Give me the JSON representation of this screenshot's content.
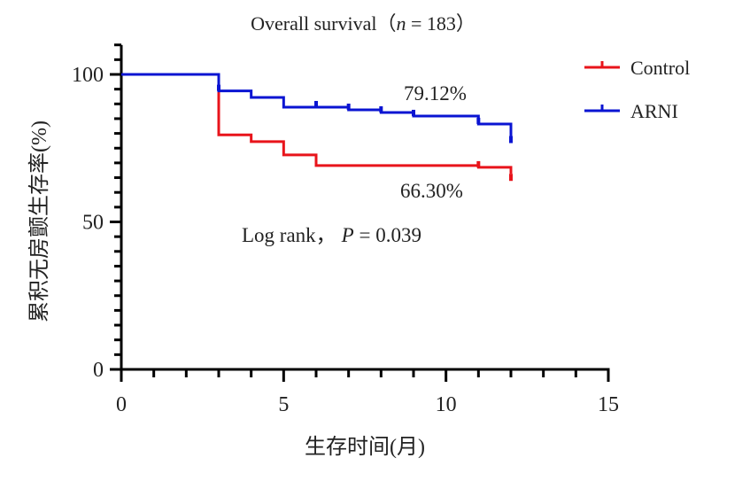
{
  "chart_data": {
    "type": "line",
    "subtype": "kaplan-meier-step",
    "title": "Overall survival（n = 183）",
    "title_parts": {
      "prefix": "Overall survival（",
      "n_symbol": "n",
      "suffix": " = 183）"
    },
    "xlabel": "生存时间(月)",
    "ylabel": "累积无房颤生存率(%)",
    "xlim": [
      0,
      15
    ],
    "ylim": [
      0,
      110
    ],
    "x_major_ticks": [
      0,
      5,
      10,
      15
    ],
    "x_tick_labels": [
      "0",
      "5",
      "10",
      "15"
    ],
    "x_minor_step": 1,
    "y_major_ticks": [
      0,
      50,
      100
    ],
    "y_tick_labels": [
      "0",
      "50",
      "100"
    ],
    "y_minor_step": 5,
    "grid": false,
    "legend_position": "top-right",
    "series": [
      {
        "name": "Control",
        "color": "#e8141b",
        "steps": [
          [
            0,
            100
          ],
          [
            3,
            79.5
          ],
          [
            4,
            77.2
          ],
          [
            5,
            72.7
          ],
          [
            6,
            69.1
          ],
          [
            11,
            68.5
          ],
          [
            12,
            66.3
          ]
        ],
        "censor_x": [
          11,
          12
        ],
        "final_label": "66.30%"
      },
      {
        "name": "ARNI",
        "color": "#0a14d2",
        "steps": [
          [
            0,
            100
          ],
          [
            3,
            94.4
          ],
          [
            4,
            92.2
          ],
          [
            5,
            88.9
          ],
          [
            7,
            88.0
          ],
          [
            8,
            87.1
          ],
          [
            9,
            85.9
          ],
          [
            11,
            83.2
          ],
          [
            12,
            79.12
          ]
        ],
        "censor_x": [
          3,
          6,
          7,
          8,
          9,
          11,
          12
        ],
        "final_label": "79.12%"
      }
    ],
    "annotations": {
      "logrank_prefix": "Log rank，",
      "p_symbol": "P",
      "p_value_text": " = 0.039"
    }
  }
}
